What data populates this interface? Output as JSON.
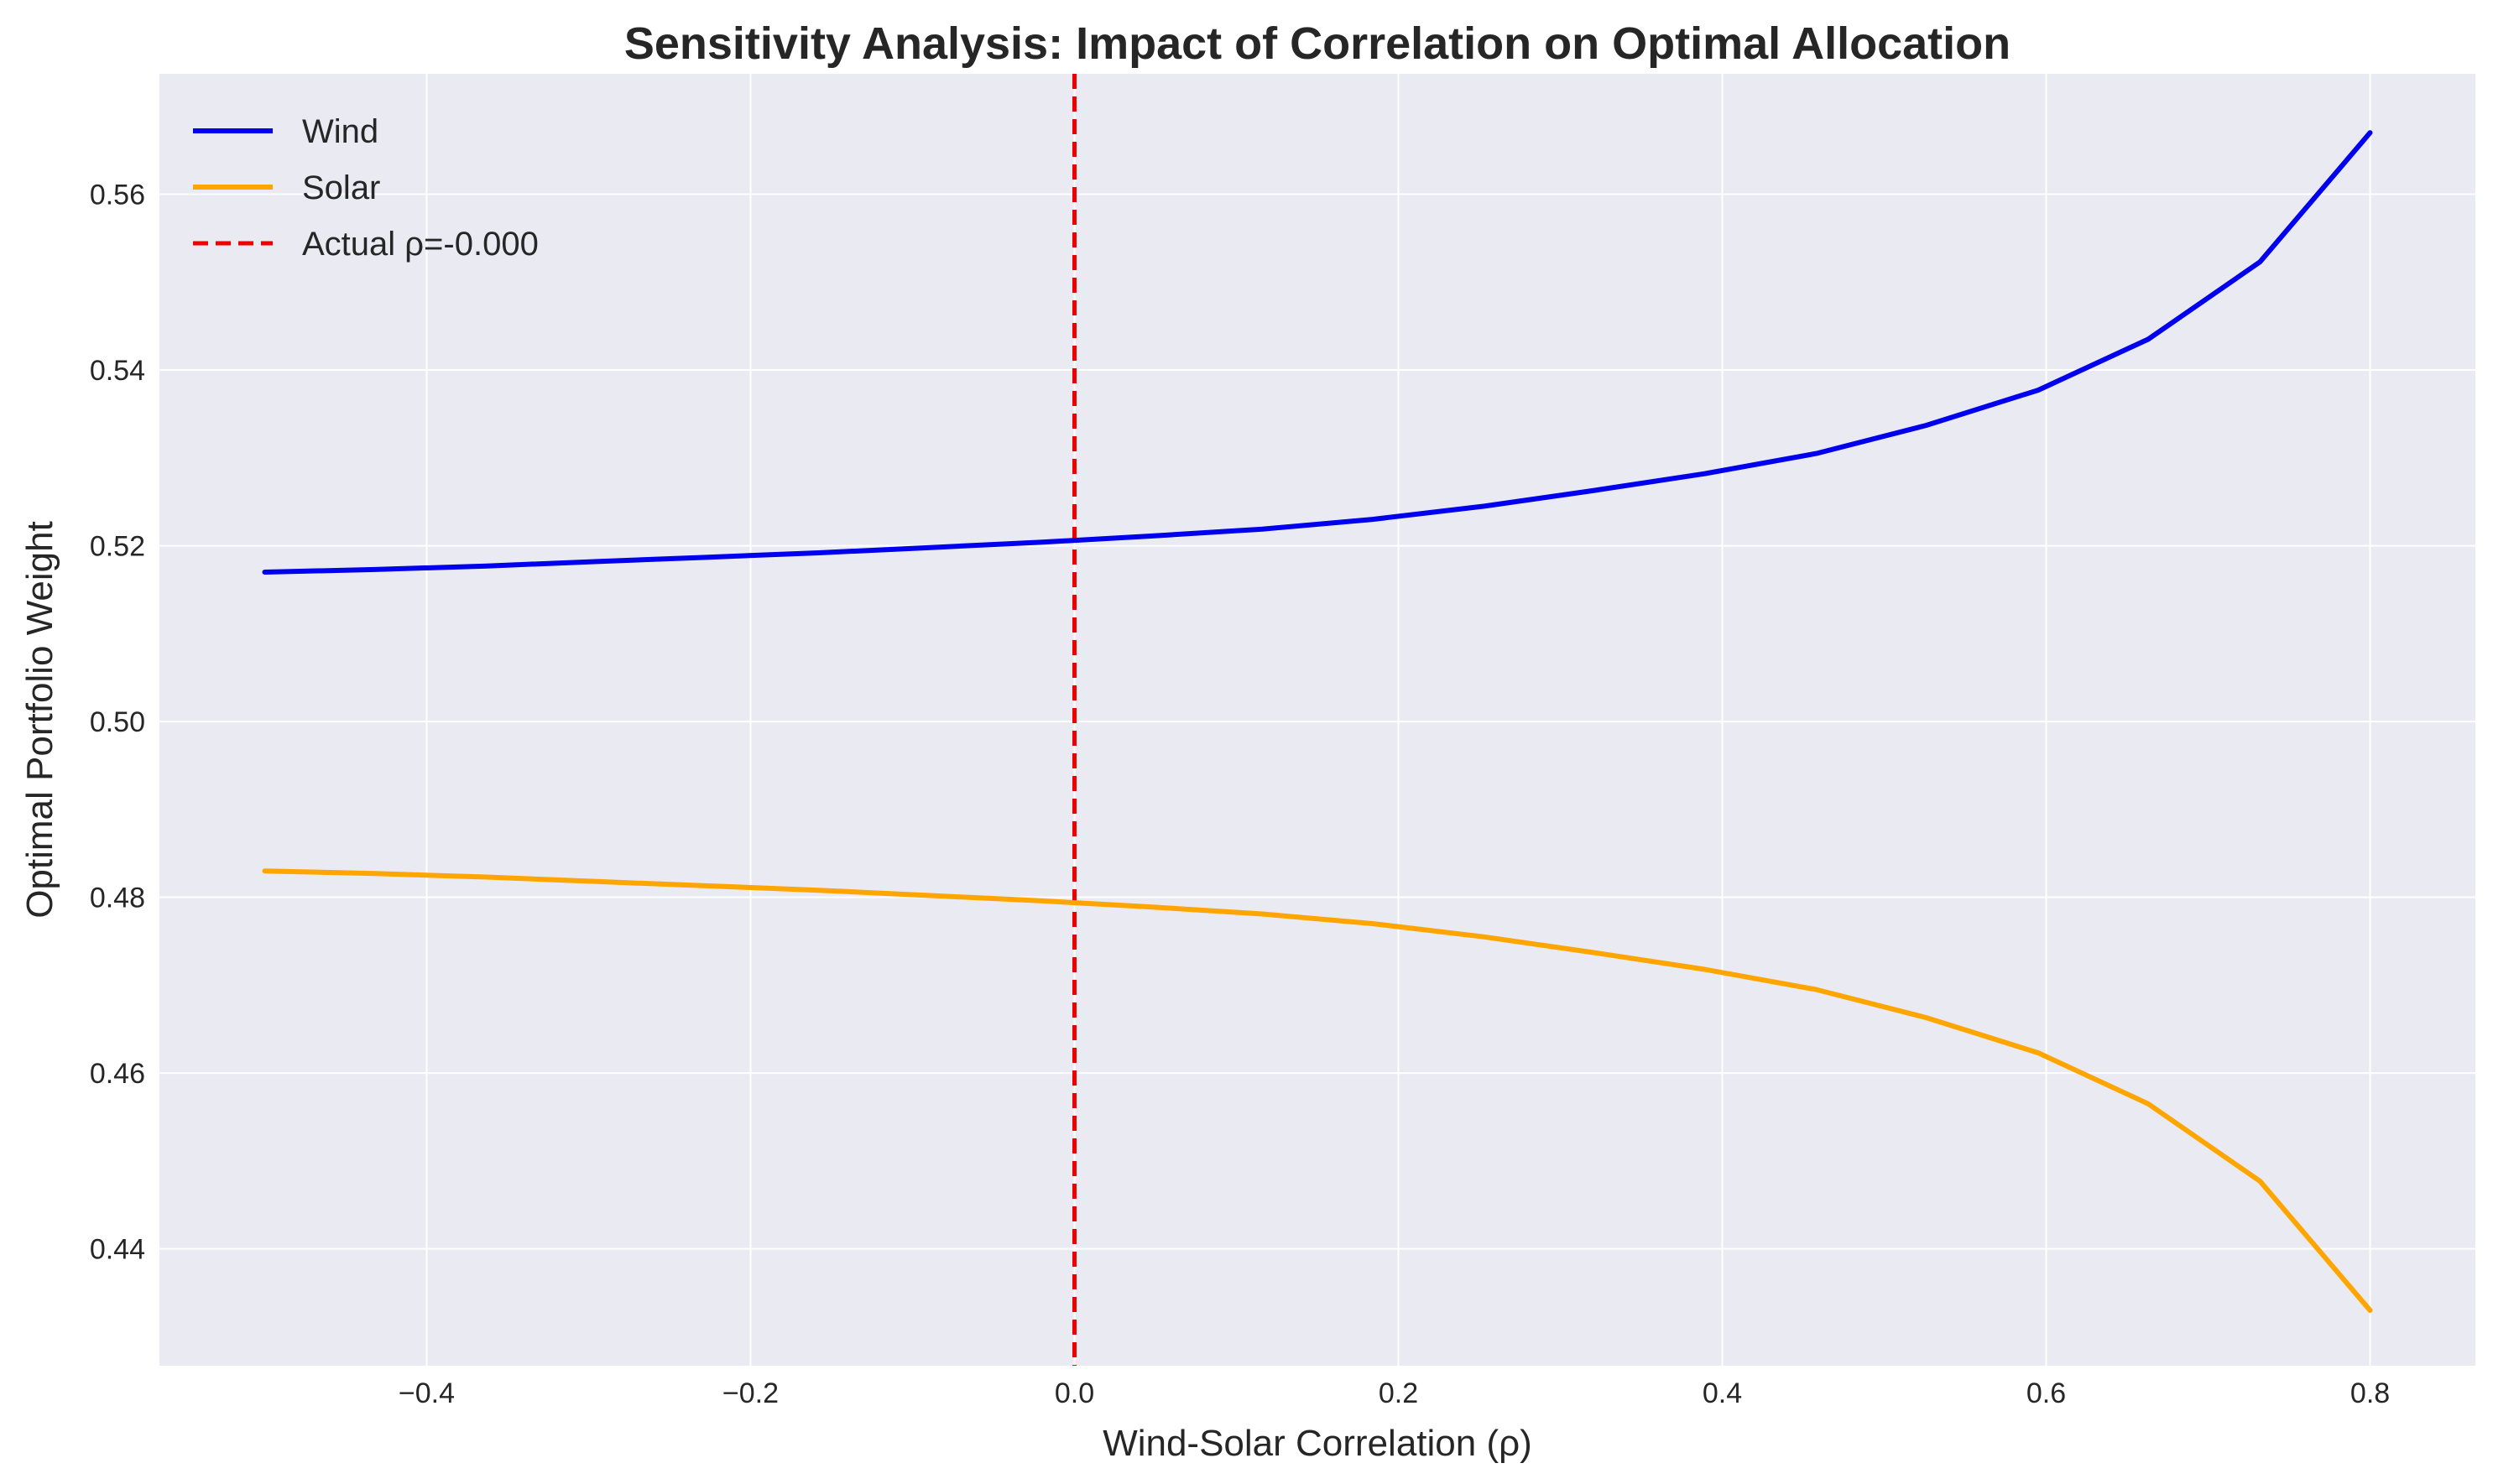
{
  "chart_data": {
    "type": "line",
    "title": "Sensitivity Analysis: Impact of Correlation on Optimal Allocation",
    "xlabel": "Wind-Solar Correlation (ρ)",
    "ylabel": "Optimal Portfolio Weight",
    "xlim": [
      -0.565,
      0.865
    ],
    "ylim": [
      0.4267,
      0.5737
    ],
    "xticks": [
      -0.4,
      -0.2,
      0.0,
      0.2,
      0.4,
      0.6,
      0.8
    ],
    "xtick_labels": [
      "−0.4",
      "−0.2",
      "0.0",
      "0.2",
      "0.4",
      "0.6",
      "0.8"
    ],
    "yticks": [
      0.44,
      0.46,
      0.48,
      0.5,
      0.52,
      0.54,
      0.56
    ],
    "ytick_labels": [
      "0.44",
      "0.46",
      "0.48",
      "0.50",
      "0.52",
      "0.54",
      "0.56"
    ],
    "grid": true,
    "legend_position": "top-left",
    "x": [
      -0.5,
      -0.432,
      -0.363,
      -0.295,
      -0.226,
      -0.158,
      -0.089,
      -0.021,
      0.047,
      0.116,
      0.184,
      0.253,
      0.321,
      0.389,
      0.458,
      0.526,
      0.595,
      0.663,
      0.732,
      0.8
    ],
    "series": [
      {
        "name": "Wind",
        "color": "#0000ee",
        "values": [
          0.517,
          0.5173,
          0.5177,
          0.5182,
          0.5187,
          0.5192,
          0.5198,
          0.5204,
          0.5211,
          0.5219,
          0.523,
          0.5245,
          0.5263,
          0.5282,
          0.5305,
          0.5337,
          0.5377,
          0.5435,
          0.5523,
          0.567
        ]
      },
      {
        "name": "Solar",
        "color": "#ffa500",
        "values": [
          0.483,
          0.4827,
          0.4823,
          0.4818,
          0.4813,
          0.4808,
          0.4802,
          0.4796,
          0.4789,
          0.4781,
          0.477,
          0.4755,
          0.4737,
          0.4718,
          0.4695,
          0.4663,
          0.4623,
          0.4565,
          0.4477,
          0.433
        ]
      }
    ],
    "vline": {
      "x": 0.0,
      "label": "Actual ρ=-0.000",
      "color": "#ee0000",
      "style": "dashed"
    }
  },
  "colors": {
    "plot_background": "#eaeaf2",
    "grid": "#ffffff"
  }
}
